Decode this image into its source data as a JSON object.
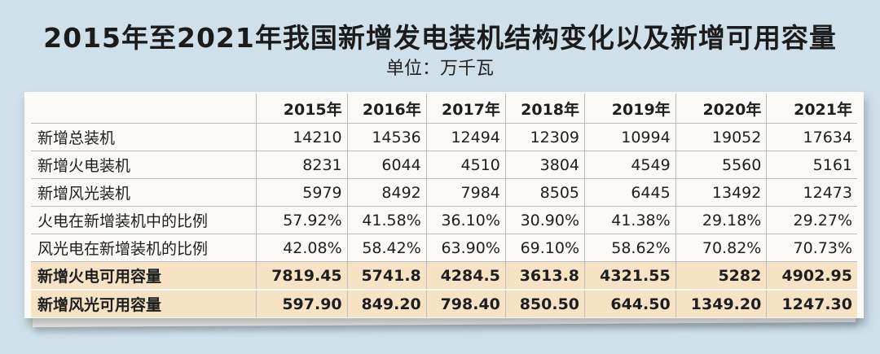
{
  "title": "2015年至2021年我国新增发电装机结构变化以及新增可用容量",
  "unit": "单位：万千瓦",
  "chart_data": {
    "type": "table",
    "columns": [
      "2015年",
      "2016年",
      "2017年",
      "2018年",
      "2019年",
      "2020年",
      "2021年"
    ],
    "rows": [
      {
        "label": "新增总装机",
        "values": [
          "14210",
          "14536",
          "12494",
          "12309",
          "10994",
          "19052",
          "17634"
        ],
        "highlight": false
      },
      {
        "label": "新增火电装机",
        "values": [
          "8231",
          "6044",
          "4510",
          "3804",
          "4549",
          "5560",
          "5161"
        ],
        "highlight": false
      },
      {
        "label": "新增风光装机",
        "values": [
          "5979",
          "8492",
          "7984",
          "8505",
          "6445",
          "13492",
          "12473"
        ],
        "highlight": false
      },
      {
        "label": "火电在新增装机中的比例",
        "values": [
          "57.92%",
          "41.58%",
          "36.10%",
          "30.90%",
          "41.38%",
          "29.18%",
          "29.27%"
        ],
        "highlight": false
      },
      {
        "label": "风光电在新增装机的比例",
        "values": [
          "42.08%",
          "58.42%",
          "63.90%",
          "69.10%",
          "58.62%",
          "70.82%",
          "70.73%"
        ],
        "highlight": false
      },
      {
        "label": "新增火电可用容量",
        "values": [
          "7819.45",
          "5741.8",
          "4284.5",
          "3613.8",
          "4321.55",
          "5282",
          "4902.95"
        ],
        "highlight": true
      },
      {
        "label": "新增风光可用容量",
        "values": [
          "597.90",
          "849.20",
          "798.40",
          "850.50",
          "644.50",
          "1349.20",
          "1247.30"
        ],
        "highlight": true
      }
    ],
    "colors": {
      "background": "#cfe0ea",
      "paper": "#fbfaf6",
      "highlight": "#f6e3c6"
    }
  }
}
